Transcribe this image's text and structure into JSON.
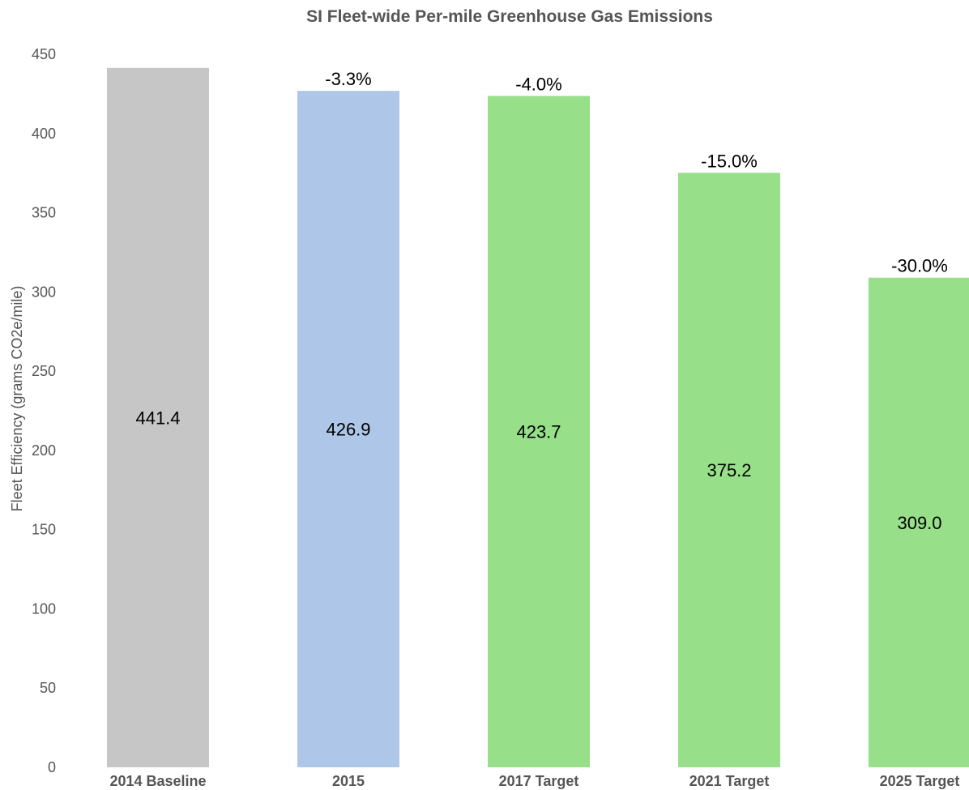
{
  "chart_data": {
    "type": "bar",
    "title": "SI Fleet-wide Per-mile Greenhouse Gas Emissions",
    "xlabel": "",
    "ylabel": "Fleet Efficiency (grams CO2e/mile)",
    "ylim": [
      0,
      450
    ],
    "yticks": [
      0,
      50,
      100,
      150,
      200,
      250,
      300,
      350,
      400,
      450
    ],
    "grid": false,
    "categories": [
      "2014 Baseline",
      "2015",
      "2017 Target",
      "2021 Target",
      "2025 Target"
    ],
    "values": [
      441.4,
      426.9,
      423.7,
      375.2,
      309.0
    ],
    "value_labels": [
      "441.4",
      "426.9",
      "423.7",
      "375.2",
      "309.0"
    ],
    "change_labels": [
      "",
      "-3.3%",
      "-4.0%",
      "-15.0%",
      "-30.0%"
    ],
    "colors": [
      "#c6c6c6",
      "#aec7e8",
      "#98df8a",
      "#98df8a",
      "#98df8a"
    ]
  }
}
